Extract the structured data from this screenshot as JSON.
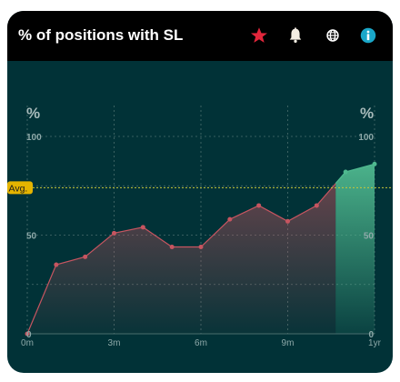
{
  "header": {
    "title": "% of positions with SL",
    "icons": [
      "star-icon",
      "bell-icon",
      "globe-icon",
      "info-icon"
    ],
    "colors": {
      "background": "#000000",
      "star": "#e2263b",
      "bell": "#f3ede3",
      "globe": "#ffffff",
      "info": "#1aa7c9"
    }
  },
  "chart_data": {
    "type": "line",
    "title": "",
    "xlabel": "",
    "ylabel": "%",
    "ylabel_right": "%",
    "ylim": [
      0,
      100
    ],
    "y_ticks": [
      "0",
      "50",
      "100"
    ],
    "x": [
      "0m",
      "1m",
      "2m",
      "3m",
      "4m",
      "5m",
      "6m",
      "7m",
      "8m",
      "9m",
      "10m",
      "11m",
      "12m"
    ],
    "x_tick_labels": [
      "0m",
      "3m",
      "6m",
      "9m",
      "1yr"
    ],
    "series": [
      {
        "color": "#c65560",
        "values": [
          0,
          35,
          39,
          51,
          54,
          44,
          44,
          58,
          65,
          57,
          65,
          82,
          86
        ]
      }
    ],
    "highlight_from_index": 11,
    "highlight_color": "#4fb98f",
    "average": {
      "label": "Avg.",
      "value": 74,
      "color": "#c8c83a",
      "label_bg": "#e5b400"
    },
    "grid": true,
    "colors": {
      "background": "#013237",
      "grid": "#4a6e6e",
      "tick_text": "#8ea9a9",
      "axis_label": "#a9bbbb"
    }
  }
}
